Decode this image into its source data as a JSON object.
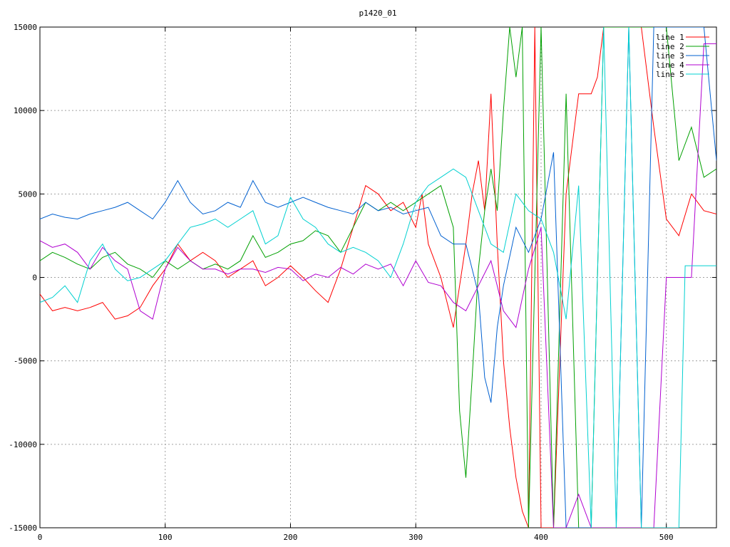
{
  "chart_data": {
    "type": "line",
    "title": "p1420_01",
    "xlabel": "",
    "ylabel": "",
    "xlim": [
      0,
      540
    ],
    "ylim": [
      -15000,
      15000
    ],
    "xticks": [
      0,
      100,
      200,
      300,
      400,
      500
    ],
    "yticks": [
      -15000,
      -10000,
      -5000,
      0,
      5000,
      10000,
      15000
    ],
    "grid": true,
    "legend_position": "top-right",
    "series": [
      {
        "name": "line 1",
        "color": "#ff0000",
        "x": [
          0,
          10,
          20,
          30,
          40,
          50,
          60,
          70,
          80,
          90,
          100,
          110,
          120,
          130,
          140,
          150,
          160,
          170,
          180,
          190,
          200,
          210,
          220,
          230,
          240,
          250,
          260,
          270,
          280,
          290,
          300,
          305,
          310,
          320,
          330,
          340,
          345,
          350,
          355,
          360,
          365,
          370,
          375,
          380,
          385,
          390,
          395,
          400,
          410,
          420,
          430,
          440,
          445,
          450,
          460,
          470,
          480,
          490,
          500,
          510,
          520,
          530,
          540
        ],
        "y": [
          -1000,
          -2000,
          -1800,
          -2000,
          -1800,
          -1500,
          -2500,
          -2300,
          -1800,
          -500,
          500,
          2000,
          1000,
          1500,
          1000,
          0,
          500,
          1000,
          -500,
          0,
          700,
          0,
          -800,
          -1500,
          500,
          3000,
          5500,
          5000,
          4000,
          4500,
          3000,
          5000,
          2000,
          0,
          -3000,
          2000,
          5000,
          7000,
          4000,
          11000,
          2000,
          -5000,
          -9000,
          -12000,
          -14000,
          -15000,
          15000,
          -15000,
          -15000,
          5000,
          11000,
          11000,
          12000,
          15000,
          15000,
          15000,
          15000,
          9000,
          3500,
          2500,
          5000,
          4000,
          3800
        ]
      },
      {
        "name": "line 2",
        "color": "#00a000",
        "x": [
          0,
          10,
          20,
          30,
          40,
          50,
          60,
          70,
          80,
          90,
          100,
          110,
          120,
          130,
          140,
          150,
          160,
          170,
          180,
          190,
          200,
          210,
          220,
          230,
          240,
          250,
          260,
          270,
          280,
          290,
          300,
          310,
          320,
          330,
          335,
          340,
          345,
          350,
          355,
          360,
          365,
          370,
          375,
          380,
          385,
          390,
          400,
          410,
          420,
          430,
          440,
          450,
          460,
          470,
          480,
          490,
          500,
          510,
          520,
          530,
          540
        ],
        "y": [
          1000,
          1500,
          1200,
          800,
          500,
          1200,
          1500,
          800,
          500,
          0,
          1000,
          500,
          1000,
          500,
          800,
          500,
          1000,
          2500,
          1200,
          1500,
          2000,
          2200,
          2800,
          2500,
          1500,
          3000,
          4500,
          4000,
          4500,
          4000,
          4500,
          5000,
          5500,
          3000,
          -8000,
          -12000,
          -6000,
          500,
          4000,
          6500,
          4000,
          10000,
          15000,
          12000,
          15000,
          -15000,
          15000,
          -15000,
          11000,
          -15000,
          -15000,
          15000,
          15000,
          15000,
          15000,
          15000,
          15000,
          7000,
          9000,
          6000,
          6500
        ]
      },
      {
        "name": "line 3",
        "color": "#0060d0",
        "x": [
          0,
          10,
          20,
          30,
          40,
          50,
          60,
          70,
          80,
          90,
          100,
          110,
          120,
          130,
          140,
          150,
          160,
          170,
          180,
          190,
          200,
          210,
          220,
          230,
          240,
          250,
          260,
          270,
          280,
          290,
          300,
          310,
          320,
          330,
          340,
          350,
          355,
          360,
          365,
          370,
          380,
          390,
          400,
          410,
          420,
          430,
          440,
          450,
          460,
          470,
          480,
          490,
          500,
          510,
          520,
          530,
          540
        ],
        "y": [
          3500,
          3800,
          3600,
          3500,
          3800,
          4000,
          4200,
          4500,
          4000,
          3500,
          4500,
          5800,
          4500,
          3800,
          4000,
          4500,
          4200,
          5800,
          4500,
          4200,
          4500,
          4800,
          4500,
          4200,
          4000,
          3800,
          4500,
          4000,
          4200,
          3800,
          4000,
          4200,
          2500,
          2000,
          2000,
          -1000,
          -6000,
          -7500,
          -3000,
          -500,
          3000,
          1500,
          3500,
          7500,
          -15000,
          -15000,
          -15000,
          -15000,
          -15000,
          15000,
          -15000,
          15000,
          15000,
          15000,
          15000,
          15000,
          7000
        ]
      },
      {
        "name": "line 4",
        "color": "#b000d0",
        "x": [
          0,
          10,
          20,
          30,
          40,
          50,
          60,
          70,
          80,
          90,
          100,
          110,
          120,
          130,
          140,
          150,
          160,
          170,
          180,
          190,
          200,
          210,
          220,
          230,
          240,
          250,
          260,
          270,
          280,
          290,
          300,
          310,
          320,
          330,
          340,
          350,
          360,
          370,
          380,
          390,
          400,
          410,
          420,
          430,
          440,
          450,
          460,
          470,
          480,
          490,
          500,
          510,
          520,
          525,
          530,
          540
        ],
        "y": [
          2200,
          1800,
          2000,
          1500,
          500,
          1800,
          1000,
          500,
          -2000,
          -2500,
          500,
          1800,
          1000,
          500,
          500,
          200,
          500,
          500,
          300,
          600,
          500,
          -200,
          200,
          0,
          600,
          200,
          800,
          500,
          800,
          -500,
          1000,
          -300,
          -500,
          -1500,
          -2000,
          -500,
          1000,
          -2000,
          -3000,
          500,
          3000,
          -15000,
          -15000,
          -13000,
          -15000,
          -15000,
          -15000,
          -15000,
          -15000,
          -15000,
          0,
          0,
          0,
          7000,
          14000,
          14000
        ]
      },
      {
        "name": "line 5",
        "color": "#00d0d0",
        "x": [
          0,
          10,
          20,
          30,
          40,
          50,
          60,
          70,
          80,
          90,
          100,
          110,
          120,
          130,
          140,
          150,
          160,
          170,
          180,
          190,
          200,
          210,
          220,
          230,
          240,
          250,
          260,
          270,
          280,
          290,
          300,
          310,
          320,
          330,
          340,
          350,
          360,
          370,
          380,
          390,
          400,
          410,
          420,
          430,
          440,
          450,
          460,
          470,
          480,
          490,
          500,
          510,
          515,
          520,
          530,
          540
        ],
        "y": [
          -1500,
          -1200,
          -500,
          -1500,
          1000,
          2000,
          500,
          -200,
          0,
          500,
          1000,
          2000,
          3000,
          3200,
          3500,
          3000,
          3500,
          4000,
          2000,
          2500,
          4800,
          3500,
          3000,
          2000,
          1500,
          1800,
          1500,
          1000,
          0,
          2000,
          4500,
          5500,
          6000,
          6500,
          6000,
          4000,
          2000,
          1500,
          5000,
          4000,
          3500,
          1500,
          -2500,
          5500,
          -15000,
          15000,
          -15000,
          15000,
          -15000,
          -15000,
          -15000,
          -15000,
          700,
          700,
          700,
          700
        ]
      }
    ]
  }
}
